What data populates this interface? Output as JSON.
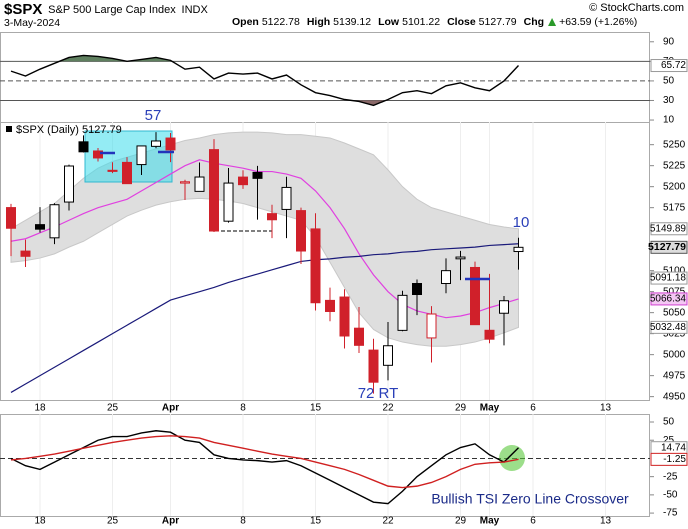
{
  "header": {
    "symbol": "$SPX",
    "name": "S&P 500 Large Cap Index",
    "exchange": "INDX",
    "date": "3-May-2024",
    "source": "© StockCharts.com",
    "quote": [
      {
        "label": "Open",
        "value": "5122.78"
      },
      {
        "label": "High",
        "value": "5139.12"
      },
      {
        "label": "Low",
        "value": "5101.22"
      },
      {
        "label": "Close",
        "value": "5127.79"
      },
      {
        "label": "Chg",
        "value": "+63.59 (+1.26%)"
      }
    ]
  },
  "chart_data": [
    {
      "type": "line",
      "series": [
        {
          "color": "#000000",
          "values": [
            60,
            55,
            62,
            68,
            74,
            76,
            75,
            73,
            70,
            72,
            74,
            71,
            62,
            64,
            52,
            58,
            57,
            58,
            52,
            56,
            46,
            38,
            35,
            31,
            29,
            25,
            31,
            38,
            40,
            37,
            45,
            48,
            43,
            40,
            50,
            65.72,
            null,
            null,
            null,
            null,
            null,
            null,
            null,
            null
          ]
        }
      ],
      "ylim": [
        8,
        100
      ],
      "yticks": [
        90,
        70,
        50,
        30,
        10
      ],
      "levels": [
        70,
        50,
        30
      ],
      "overbought": 70,
      "oversold": 30,
      "overbought_color": "#5f7f5f",
      "oversold_color": "#8a6868",
      "price_markers": [
        65.72
      ]
    },
    {
      "type": "candlestick",
      "legend": "$SPX (Daily)",
      "categories": [
        null,
        null,
        "18",
        null,
        null,
        null,
        null,
        "25",
        null,
        null,
        null,
        "Apr",
        null,
        null,
        null,
        null,
        "8",
        null,
        null,
        null,
        null,
        "15",
        null,
        null,
        null,
        null,
        "22",
        null,
        null,
        null,
        null,
        "29",
        null,
        "May",
        null,
        null,
        "6",
        null,
        null,
        null,
        null,
        "13",
        null,
        null
      ],
      "open": [
        5175.1,
        5123.3,
        5154.8,
        5139.1,
        5181.7,
        5253.4,
        5242.5,
        5219.5,
        5228.9,
        5226.3,
        5248.0,
        5257.9,
        5204.3,
        5194.4,
        5244.1,
        5158.9,
        5211.4,
        5217.0,
        5167.9,
        5172.9,
        5171.5,
        5149.7,
        5064.6,
        5068.6,
        5031.5,
        5005.4,
        4987.3,
        5028.9,
        5084.7,
        5019.9,
        5084.7,
        5114.1,
        5103.8,
        5029.0,
        5049.3,
        5122.78,
        null,
        null,
        null,
        null,
        null,
        null,
        null,
        null
      ],
      "high": [
        5179.5,
        5136.9,
        5175.6,
        5180.3,
        5226.2,
        5261.1,
        5246.1,
        5229.1,
        5235.2,
        5249.0,
        5264.9,
        5263.9,
        5208.3,
        5228.8,
        5256.6,
        5222.2,
        5219.6,
        5224.8,
        5178.4,
        5211.8,
        5175.0,
        5168.4,
        5079.8,
        5077.9,
        5056.7,
        5019.0,
        5038.8,
        5076.1,
        5089.5,
        5057.8,
        5114.6,
        5123.5,
        5110.8,
        5096.1,
        5069.9,
        5139.12,
        null,
        null,
        null,
        null,
        null,
        null,
        null,
        null
      ],
      "low": [
        5117.3,
        5104.4,
        5145.5,
        5131.6,
        5171.6,
        5240.7,
        5229.9,
        5216.1,
        5203.4,
        5213.9,
        5245.8,
        5229.2,
        5184.1,
        5194.4,
        5146.1,
        5157.2,
        5197.4,
        5160.8,
        5138.7,
        5138.8,
        5107.9,
        5052.5,
        5039.8,
        5007.3,
        5001.9,
        4953.6,
        4969.4,
        5027.9,
        5047.0,
        4990.6,
        5073.1,
        5088.7,
        5035.3,
        5013.5,
        5011.0,
        5101.22,
        null,
        null,
        null,
        null,
        null,
        null,
        null,
        null
      ],
      "close": [
        5150.5,
        5117.1,
        5149.4,
        5178.5,
        5224.6,
        5241.5,
        5234.2,
        5218.2,
        5203.6,
        5248.5,
        5254.4,
        5243.8,
        5205.8,
        5211.5,
        5147.2,
        5204.3,
        5202.4,
        5209.9,
        5160.6,
        5199.1,
        5123.4,
        5061.8,
        5051.4,
        5022.2,
        5011.1,
        4967.2,
        5010.6,
        5070.6,
        5071.6,
        5048.4,
        5100.0,
        5116.2,
        5035.7,
        5018.4,
        5064.2,
        5127.79,
        null,
        null,
        null,
        null,
        null,
        null,
        null,
        null
      ],
      "up_color": "#000000",
      "down_color": "#d0202a",
      "band": {
        "color": "#dedede",
        "upper": [
          5150,
          5160,
          5170,
          5180,
          5195,
          5210,
          5222,
          5230,
          5235,
          5240,
          5245,
          5250,
          5255,
          5258,
          5262,
          5264,
          5265,
          5265,
          5264,
          5262,
          5262,
          5260,
          5258,
          5252,
          5245,
          5238,
          5220,
          5200,
          5185,
          5175,
          5170,
          5165,
          5160,
          5155,
          5152,
          5149.89,
          null,
          null,
          null,
          null,
          null,
          null,
          null,
          null
        ],
        "lower": [
          5110,
          5112,
          5115,
          5120,
          5128,
          5135,
          5145,
          5155,
          5165,
          5172,
          5178,
          5182,
          5185,
          5186,
          5185,
          5183,
          5180,
          5175,
          5170,
          5165,
          5160,
          5140,
          5110,
          5080,
          5050,
          5030,
          5020,
          5015,
          5012,
          5010,
          5010,
          5012,
          5015,
          5020,
          5026,
          5032.48,
          null,
          null,
          null,
          null,
          null,
          null,
          null,
          null
        ]
      },
      "overlays": [
        {
          "color": "#e040e0",
          "values": [
            5135,
            5138,
            5145,
            5152,
            5160,
            5168,
            5175,
            5180,
            5185,
            5195,
            5205,
            5215,
            5225,
            5232,
            5228,
            5225,
            5222,
            5218,
            5218,
            5215,
            5210,
            5195,
            5175,
            5150,
            5120,
            5095,
            5075,
            5060,
            5052,
            5048,
            5044,
            5046,
            5050,
            5056,
            5061,
            5066.34,
            null,
            null,
            null,
            null,
            null,
            null,
            null,
            null
          ]
        },
        {
          "color": "#1a1a7a",
          "values": [
            4955,
            4965,
            4975,
            4985,
            4995,
            5005,
            5015,
            5025,
            5035,
            5045,
            5055,
            5065,
            5070,
            5075,
            5080,
            5086,
            5091,
            5096,
            5101,
            5106,
            5111,
            5113,
            5114,
            5116,
            5117,
            5119,
            5120,
            5122,
            5123,
            5125,
            5126,
            5127,
            5128,
            5130,
            5131,
            5132,
            null,
            null,
            null,
            null,
            null,
            null,
            null,
            null
          ]
        }
      ],
      "ylim": [
        4946,
        5277
      ],
      "yticks": [
        5250,
        5225,
        5200,
        5175,
        5100,
        5075,
        5050,
        5025,
        5000,
        4975,
        4950
      ],
      "price_markers": [
        5149.89,
        5127.79,
        5091.18,
        5066.34,
        5032.48
      ],
      "annotations": [
        "57",
        "10",
        "72 RT"
      ]
    },
    {
      "type": "line",
      "categories": [
        null,
        null,
        "18",
        null,
        null,
        null,
        null,
        "25",
        null,
        null,
        null,
        "Apr",
        null,
        null,
        null,
        null,
        "8",
        null,
        null,
        null,
        null,
        "15",
        null,
        null,
        null,
        null,
        "22",
        null,
        null,
        null,
        null,
        "29",
        null,
        "May",
        null,
        null,
        "6",
        null,
        null,
        null,
        null,
        "13",
        null,
        null
      ],
      "series": [
        {
          "color": "#000000",
          "values": [
            0,
            -10,
            -15,
            -5,
            5,
            15,
            25,
            30,
            30,
            35,
            38,
            36,
            25,
            22,
            5,
            0,
            -2,
            -3,
            -5,
            -3,
            -10,
            -20,
            -30,
            -40,
            -50,
            -60,
            -62,
            -45,
            -25,
            -10,
            5,
            15,
            20,
            5,
            -5,
            14.74,
            null,
            null,
            null,
            null,
            null,
            null,
            null,
            null
          ]
        },
        {
          "color": "#d02020",
          "values": [
            -2,
            0,
            3,
            6,
            10,
            14,
            18,
            22,
            25,
            28,
            30,
            31,
            30,
            28,
            22,
            18,
            14,
            10,
            6,
            3,
            0,
            -5,
            -10,
            -15,
            -22,
            -30,
            -38,
            -40,
            -38,
            -33,
            -25,
            -15,
            -8,
            -6,
            -5,
            -1.25,
            null,
            null,
            null,
            null,
            null,
            null,
            null,
            null
          ]
        }
      ],
      "ylim": [
        -79,
        61
      ],
      "yticks": [
        50,
        25,
        -25,
        -50,
        -75
      ],
      "zero_line": true,
      "price_markers": [
        14.74,
        -1.25
      ],
      "annotations": [
        "Bullish TSI Zero Line Crossover"
      ]
    }
  ]
}
